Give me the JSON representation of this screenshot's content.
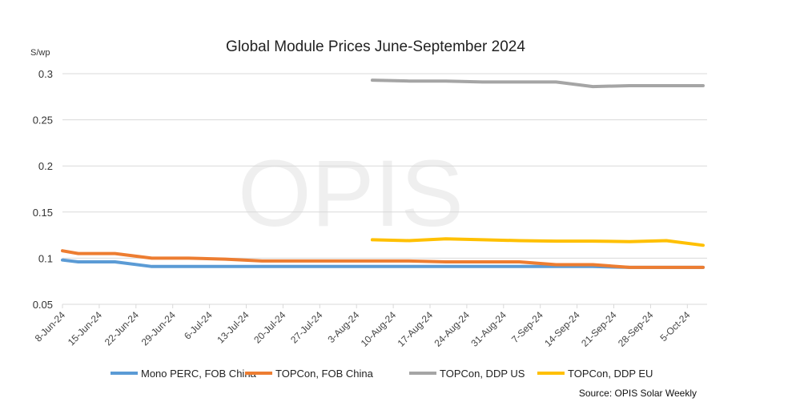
{
  "chart_data": {
    "type": "line",
    "title": "Global Module Prices  June-September 2024",
    "ylabel": "S/wp",
    "xlabel": "",
    "watermark": "OPIS",
    "source": "Source: OPIS Solar Weekly",
    "ylim": [
      0.05,
      0.3
    ],
    "yticks": [
      "0.05",
      "0.1",
      "0.15",
      "0.2",
      "0.25",
      "0.3"
    ],
    "xticks": [
      "8-Jun-24",
      "15-Jun-24",
      "22-Jun-24",
      "29-Jun-24",
      "6-Jul-24",
      "13-Jul-24",
      "20-Jul-24",
      "27-Jul-24",
      "3-Aug-24",
      "10-Aug-24",
      "17-Aug-24",
      "24-Aug-24",
      "31-Aug-24",
      "7-Sep-24",
      "14-Sep-24",
      "21-Sep-24",
      "28-Sep-24",
      "5-Oct-24"
    ],
    "grid": true,
    "legend_position": "bottom",
    "x": [
      "2024-06-08",
      "2024-06-11",
      "2024-06-18",
      "2024-06-25",
      "2024-07-02",
      "2024-07-09",
      "2024-07-16",
      "2024-07-23",
      "2024-07-30",
      "2024-08-06",
      "2024-08-13",
      "2024-08-20",
      "2024-08-27",
      "2024-09-03",
      "2024-09-10",
      "2024-09-17",
      "2024-09-24",
      "2024-10-01",
      "2024-10-08"
    ],
    "series": [
      {
        "name": "Mono PERC, FOB China",
        "color": "#5B9BD5",
        "values": [
          0.098,
          0.096,
          0.096,
          0.091,
          0.091,
          0.091,
          0.091,
          0.091,
          0.091,
          0.091,
          0.091,
          0.091,
          0.091,
          0.091,
          0.091,
          0.091,
          0.09,
          0.09,
          0.09
        ]
      },
      {
        "name": "TOPCon, FOB China",
        "color": "#ED7D31",
        "values": [
          0.108,
          0.105,
          0.105,
          0.1,
          0.1,
          0.099,
          0.097,
          0.097,
          0.097,
          0.097,
          0.097,
          0.096,
          0.096,
          0.096,
          0.093,
          0.093,
          0.09,
          0.09,
          0.09
        ]
      },
      {
        "name": "TOPCon, DDP US",
        "color": "#A5A5A5",
        "values": [
          null,
          null,
          null,
          null,
          null,
          null,
          null,
          null,
          null,
          0.293,
          0.292,
          0.292,
          0.291,
          0.291,
          0.291,
          0.286,
          0.287,
          0.287,
          0.287
        ]
      },
      {
        "name": "TOPCon, DDP EU",
        "color": "#FFC000",
        "values": [
          null,
          null,
          null,
          null,
          null,
          null,
          null,
          null,
          null,
          0.12,
          0.119,
          0.121,
          0.12,
          0.119,
          0.1185,
          0.1185,
          0.118,
          0.119,
          0.114
        ]
      }
    ]
  }
}
